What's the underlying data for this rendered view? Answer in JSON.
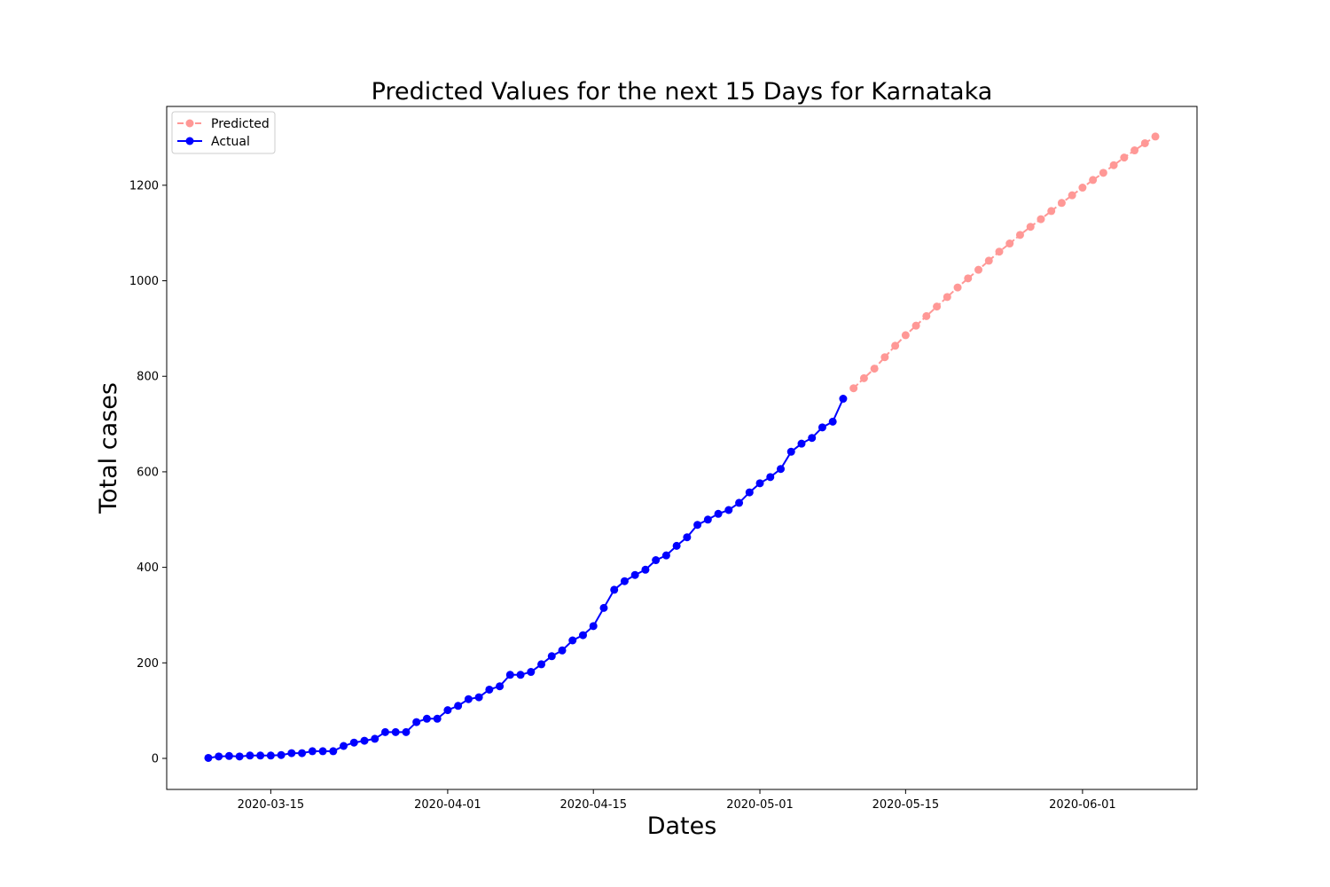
{
  "chart_data": {
    "type": "line",
    "title": "Predicted Values for the next 15 Days for Karnataka",
    "xlabel": "Dates",
    "ylabel": "Total cases",
    "x_ticks": [
      "2020-03-15",
      "2020-04-01",
      "2020-04-15",
      "2020-05-01",
      "2020-05-15",
      "2020-06-01"
    ],
    "y_ticks": [
      0,
      200,
      400,
      600,
      800,
      1000,
      1200
    ],
    "xlim": [
      "2020-03-05",
      "2020-06-12"
    ],
    "ylim": [
      -65,
      1365
    ],
    "legend": {
      "position": "top-left"
    },
    "grid": false,
    "series": [
      {
        "name": "Predicted",
        "color": "#ff9896",
        "style": "dashed",
        "start_date": "2020-05-10",
        "values": [
          775,
          796,
          816,
          840,
          864,
          886,
          906,
          926,
          946,
          966,
          986,
          1005,
          1023,
          1042,
          1061,
          1078,
          1096,
          1113,
          1129,
          1146,
          1163,
          1179,
          1195,
          1211,
          1226,
          1242,
          1258,
          1273,
          1288,
          1302
        ]
      },
      {
        "name": "Actual",
        "color": "#0000ff",
        "style": "solid",
        "start_date": "2020-03-09",
        "values": [
          1,
          4,
          5,
          4,
          6,
          6,
          6,
          7,
          11,
          11,
          15,
          15,
          15,
          26,
          33,
          37,
          41,
          55,
          55,
          55,
          76,
          83,
          83,
          101,
          110,
          124,
          128,
          144,
          151,
          175,
          175,
          181,
          197,
          214,
          226,
          247,
          258,
          277,
          315,
          353,
          371,
          384,
          395,
          415,
          425,
          445,
          463,
          489,
          500,
          512,
          520,
          535,
          557,
          576,
          589,
          606,
          642,
          659,
          671,
          693,
          705,
          753
        ]
      }
    ]
  }
}
